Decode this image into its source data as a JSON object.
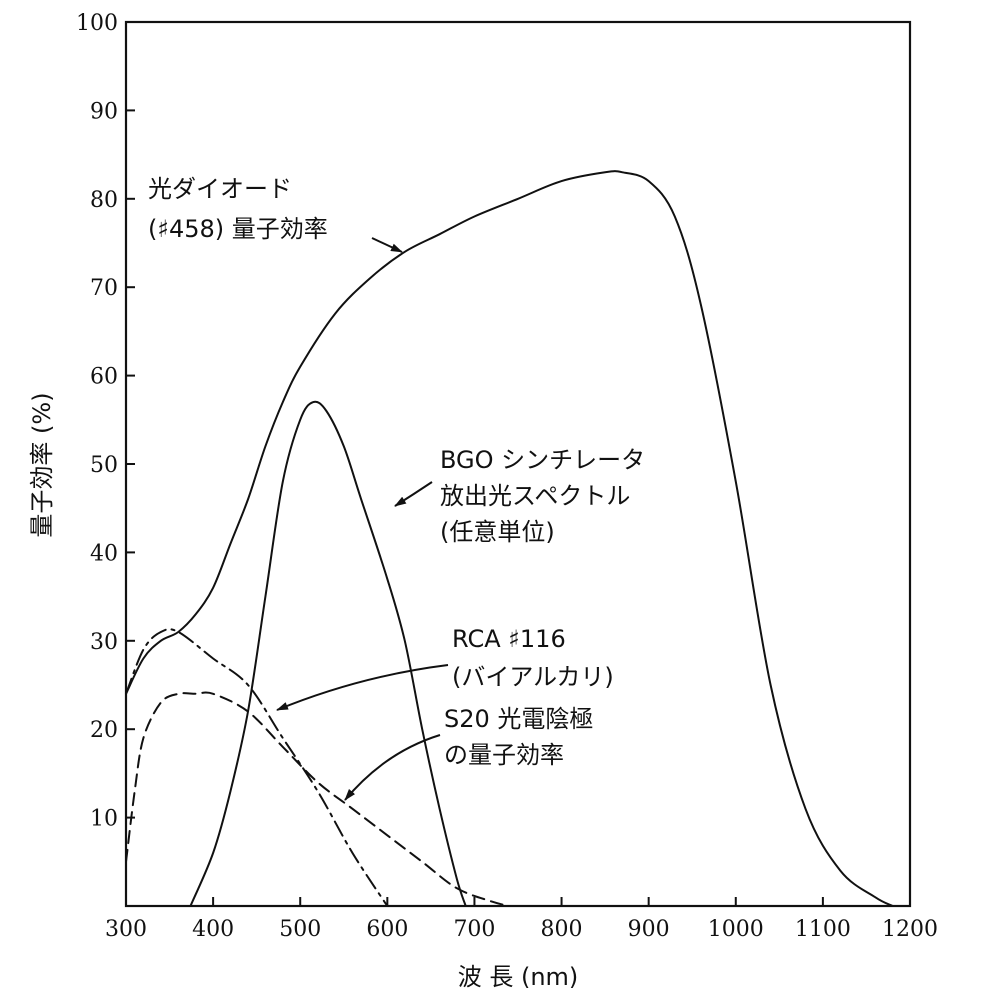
{
  "chart_data": {
    "type": "line",
    "xlabel": "波 長 (nm)",
    "ylabel": "量子効率 (%)",
    "xlim": [
      300,
      1200
    ],
    "ylim": [
      0,
      100
    ],
    "xticks": [
      "300",
      "400",
      "500",
      "600",
      "700",
      "800",
      "900",
      "1000",
      "1100",
      "1200"
    ],
    "yticks": [
      "10",
      "20",
      "30",
      "40",
      "50",
      "60",
      "70",
      "80",
      "90",
      "100"
    ],
    "grid": false,
    "series": [
      {
        "name": "光ダイオード (#458) 量子効率",
        "style": "solid",
        "x": [
          300,
          320,
          340,
          360,
          380,
          400,
          420,
          440,
          460,
          480,
          500,
          540,
          580,
          620,
          660,
          700,
          750,
          800,
          850,
          870,
          900,
          930,
          960,
          1000,
          1040,
          1080,
          1120,
          1160,
          1180
        ],
        "y": [
          24,
          28,
          30,
          31,
          33,
          36,
          41,
          46,
          52,
          57,
          61,
          67,
          71,
          74,
          76,
          78,
          80,
          82,
          83,
          83,
          82,
          78,
          68,
          48,
          25,
          11,
          4,
          1,
          0
        ]
      },
      {
        "name": "BGO シンチレータ 放出光スペクトル (任意単位)",
        "style": "solid",
        "x": [
          374,
          400,
          420,
          440,
          460,
          480,
          500,
          515,
          530,
          550,
          570,
          600,
          620,
          640,
          660,
          680,
          690
        ],
        "y": [
          0,
          6,
          13,
          22,
          35,
          48,
          55,
          57,
          56,
          52,
          46,
          37,
          30,
          20,
          11,
          3,
          0
        ]
      },
      {
        "name": "RCA #116 (バイアルカリ)",
        "style": "dashdot",
        "x": [
          300,
          320,
          340,
          360,
          400,
          440,
          480,
          520,
          560,
          600
        ],
        "y": [
          24,
          29,
          31,
          31,
          28,
          25,
          19,
          13,
          6,
          0
        ]
      },
      {
        "name": "S20 光電陰極 の量子効率",
        "style": "dashed",
        "x": [
          300,
          310,
          320,
          340,
          360,
          380,
          400,
          440,
          480,
          520,
          560,
          600,
          640,
          680,
          720,
          740
        ],
        "y": [
          5,
          13,
          19,
          23,
          24,
          24,
          24,
          22,
          18,
          14,
          11,
          8,
          5,
          2,
          0.5,
          0
        ]
      }
    ],
    "annotations": [
      {
        "lines": [
          "光ダイオード",
          "(♯458) 量子効率"
        ]
      },
      {
        "lines": [
          "BGO シンチレータ",
          "放出光スペクトル",
          "(任意単位)"
        ]
      },
      {
        "lines": [
          "RCA  ♯116",
          "(バイアルカリ)"
        ]
      },
      {
        "lines": [
          "S20 光電陰極",
          "の量子効率"
        ]
      }
    ]
  }
}
